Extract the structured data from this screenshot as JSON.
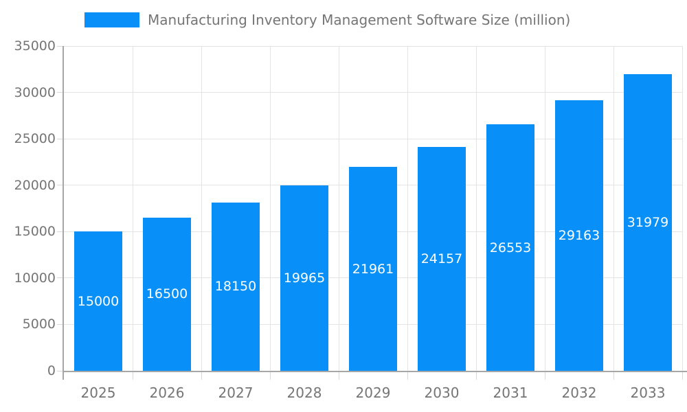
{
  "legend": {
    "label": "Manufacturing Inventory Management Software Size (million)"
  },
  "chart_data": {
    "type": "bar",
    "title": "Manufacturing Inventory Management Software Size (million)",
    "categories": [
      "2025",
      "2026",
      "2027",
      "2028",
      "2029",
      "2030",
      "2031",
      "2032",
      "2033"
    ],
    "series": [
      {
        "name": "Manufacturing Inventory Management Software Size (million)",
        "values": [
          15000,
          16500,
          18150,
          19965,
          21961,
          24157,
          26553,
          29163,
          31979
        ]
      }
    ],
    "data_labels": [
      15000,
      16500,
      18150,
      19965,
      21961,
      24157,
      26553,
      29163,
      31979
    ],
    "xlabel": "",
    "ylabel": "",
    "ylim": [
      0,
      35000
    ],
    "ytick_step": 5000,
    "yticks": [
      0,
      5000,
      10000,
      15000,
      20000,
      25000,
      30000,
      35000
    ],
    "grid": true,
    "legend_position": "top-left",
    "data_label_position": "inside-center",
    "colors": {
      "bar": "#0890F8",
      "data_label_text": "#FFFFFF",
      "axis_text": "#757575",
      "grid_line": "#E4E4E4",
      "axis_line": "#A6A6A6",
      "tick_line": "#D8D8D8",
      "background": "#FFFFFF"
    }
  }
}
